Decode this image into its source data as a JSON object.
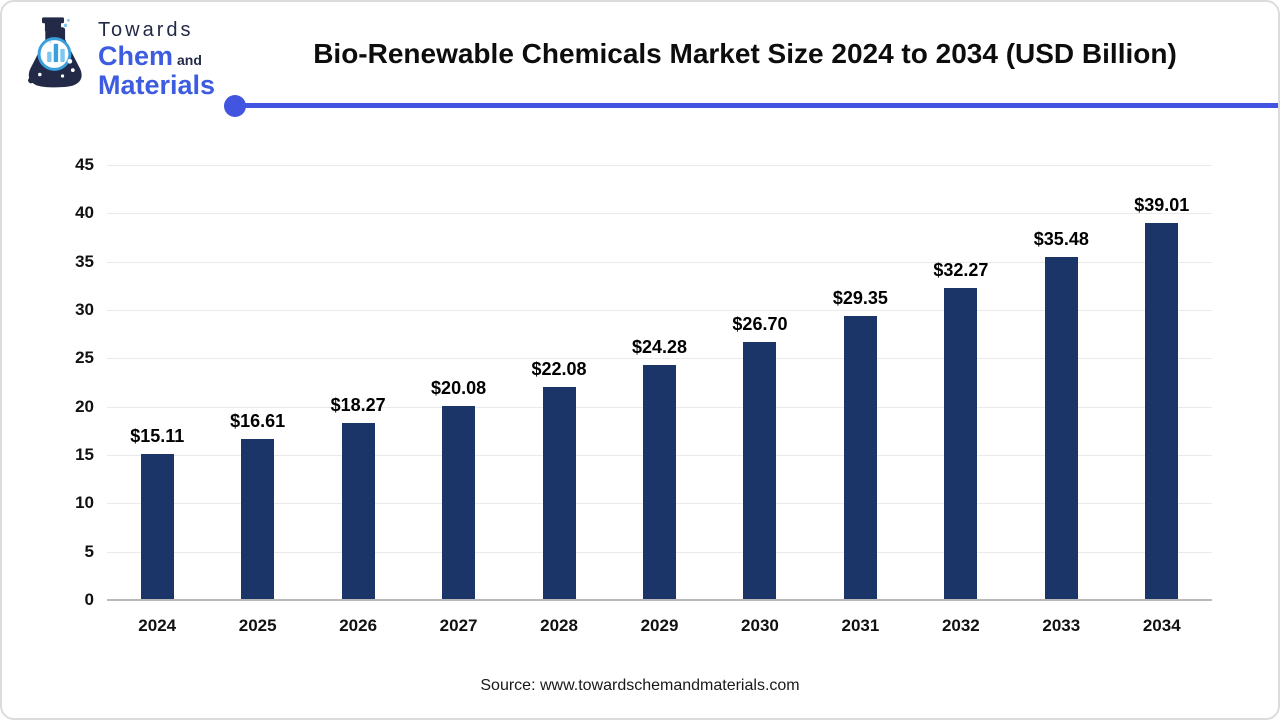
{
  "logo": {
    "line1": "Towards",
    "line2_main": "Chem",
    "line2_and": "and",
    "line3": "Materials"
  },
  "chart_data": {
    "type": "bar",
    "title": "Bio-Renewable Chemicals Market Size 2024 to 2034 (USD Billion)",
    "categories": [
      "2024",
      "2025",
      "2026",
      "2027",
      "2028",
      "2029",
      "2030",
      "2031",
      "2032",
      "2033",
      "2034"
    ],
    "values": [
      15.11,
      16.61,
      18.27,
      20.08,
      22.08,
      24.28,
      26.7,
      29.35,
      32.27,
      35.48,
      39.01
    ],
    "value_labels": [
      "$15.11",
      "$16.61",
      "$18.27",
      "$20.08",
      "$22.08",
      "$24.28",
      "$26.70",
      "$29.35",
      "$32.27",
      "$35.48",
      "$39.01"
    ],
    "xlabel": "",
    "ylabel": "",
    "ylim": [
      0,
      45
    ],
    "yticks": [
      0,
      5,
      10,
      15,
      20,
      25,
      30,
      35,
      40,
      45
    ],
    "grid": true,
    "legend": "none",
    "bar_color": "#1b3569"
  },
  "source": "Source: www.towardschemandmaterials.com",
  "colors": {
    "accent": "#4155e0",
    "bar": "#1b3569",
    "logo_blue": "#3d5ce0",
    "logo_navy": "#232a48",
    "lens_blue": "#3aa0dc",
    "gridline": "#eaeaea",
    "axis_line": "#b9b9b9"
  }
}
